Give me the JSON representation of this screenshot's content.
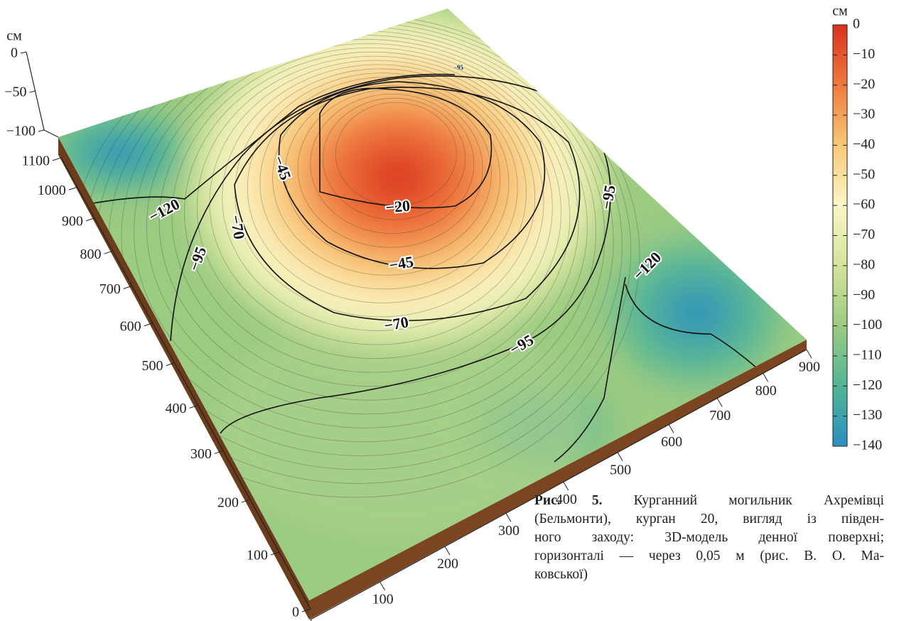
{
  "chart_data": {
    "type": "surface3d",
    "zlabel": "см",
    "zlim": [
      -100,
      0
    ],
    "zticks": [
      0,
      {
        "value": -50,
        "label": "−50"
      },
      {
        "value": -100,
        "label": "−100"
      }
    ],
    "ylim": [
      0,
      1100
    ],
    "yticks": [
      0,
      100,
      200,
      300,
      400,
      500,
      600,
      700,
      800,
      900,
      1000,
      1100
    ],
    "xlim": [
      0,
      900
    ],
    "xticks": [
      0,
      100,
      200,
      300,
      400,
      500,
      600,
      700,
      800,
      900
    ],
    "colorbar": {
      "label": "см",
      "clim": [
        -140,
        0
      ],
      "ticks": [
        0,
        {
          "value": -10,
          "label": "−10"
        },
        {
          "value": -20,
          "label": "−20"
        },
        {
          "value": -30,
          "label": "−30"
        },
        {
          "value": -40,
          "label": "−40"
        },
        {
          "value": -50,
          "label": "−50"
        },
        {
          "value": -60,
          "label": "−60"
        },
        {
          "value": -70,
          "label": "−70"
        },
        {
          "value": -80,
          "label": "−80"
        },
        {
          "value": -90,
          "label": "−90"
        },
        {
          "value": -100,
          "label": "−100"
        },
        {
          "value": -110,
          "label": "−110"
        },
        {
          "value": -120,
          "label": "−120"
        },
        {
          "value": -130,
          "label": "−130"
        },
        {
          "value": -140,
          "label": "−140"
        }
      ],
      "colors": [
        "#d9321f",
        "#ef7a3e",
        "#f8c879",
        "#fbf6c6",
        "#d3e49a",
        "#9ccb82",
        "#52b596",
        "#2a8fc0"
      ]
    },
    "contour_labels": [
      "−120",
      "−95",
      "−70",
      "−45",
      "−20",
      "−45",
      "−70",
      "−95",
      "−95",
      "−120",
      "−95"
    ],
    "caption": {
      "label": "Рис. 5.",
      "lines": [
        "Курганний могильник Ахремівці",
        "(Бельмонти), курган 20, вигляд із півден-",
        "ного заходу: 3D-модель денної поверхні;",
        "горизонталі — через 0,05 м (рис. В. О. Ма-",
        "ковської)"
      ]
    }
  }
}
